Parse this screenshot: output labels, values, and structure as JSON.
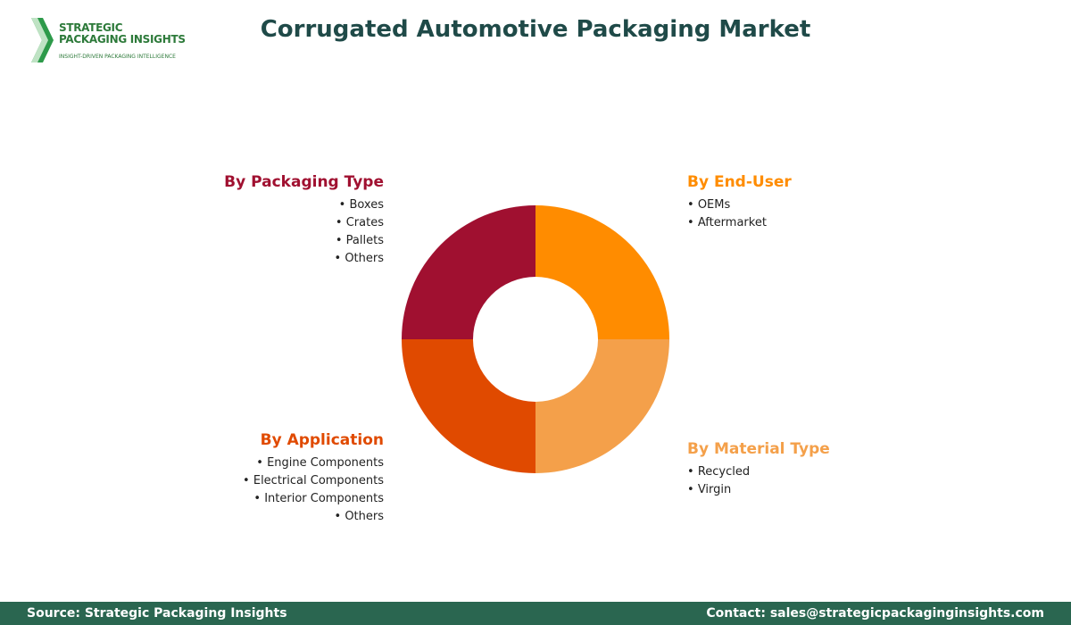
{
  "header": {
    "logo": {
      "line1": "STRATEGIC",
      "line2": "PACKAGING INSIGHTS",
      "tagline": "INSIGHT-DRIVEN PACKAGING INTELLIGENCE"
    },
    "title": "Corrugated Automotive Packaging Market"
  },
  "segments": [
    {
      "title": "By End-User",
      "color": "#ff8c00",
      "items": [
        "OEMs",
        "Aftermarket"
      ]
    },
    {
      "title": "By Material Type",
      "color": "#f4a04a",
      "items": [
        "Recycled",
        "Virgin"
      ]
    },
    {
      "title": "By Application",
      "color": "#e04a00",
      "items": [
        "Engine Components",
        "Electrical Components",
        "Interior Components",
        "Others"
      ]
    },
    {
      "title": "By Packaging Type",
      "color": "#a01030",
      "items": [
        "Boxes",
        "Crates",
        "Pallets",
        "Others"
      ]
    }
  ],
  "footer": {
    "source": "Source: Strategic Packaging Insights",
    "contact": "Contact: sales@strategicpackaginginsights.com"
  }
}
